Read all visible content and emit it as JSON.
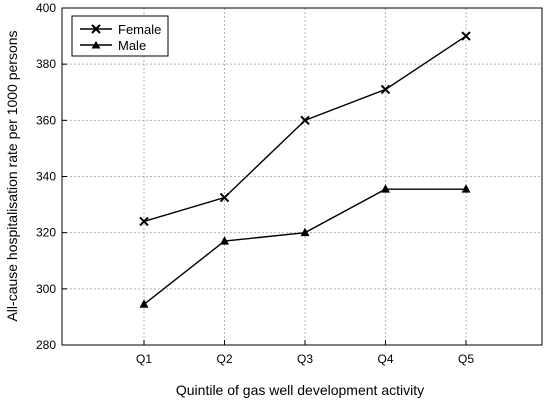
{
  "chart_data": {
    "type": "line",
    "categories": [
      "Q1",
      "Q2",
      "Q3",
      "Q4",
      "Q5"
    ],
    "series": [
      {
        "name": "Female",
        "marker": "cross",
        "values": [
          324,
          332.5,
          360,
          371,
          390
        ]
      },
      {
        "name": "Male",
        "marker": "triangle",
        "values": [
          294.5,
          317,
          320,
          335.5,
          335.5
        ]
      }
    ],
    "xlabel": "Quintile of gas well development activity",
    "ylabel": "All-cause hospitalisation rate per 1000 persons",
    "ylim": [
      280,
      400
    ],
    "yticks": [
      280,
      300,
      320,
      340,
      360,
      380,
      400
    ],
    "grid": true,
    "legend_position": "top-left",
    "line_color": "#000000",
    "grid_color": "#b4b4b4"
  }
}
